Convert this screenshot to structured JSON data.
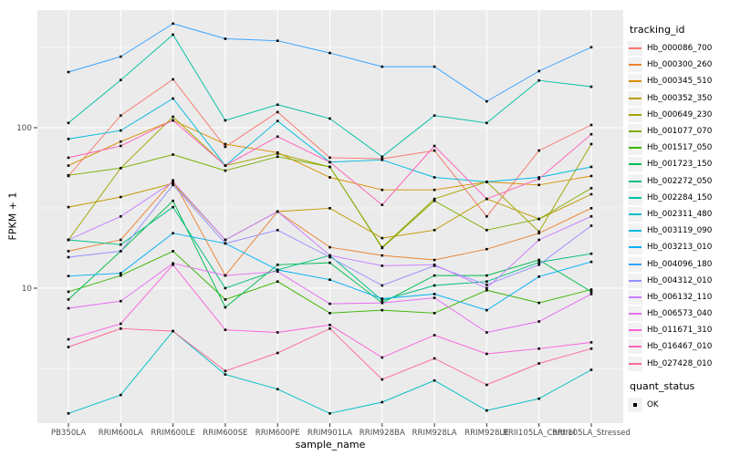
{
  "chart_data": {
    "type": "line",
    "title": "",
    "xlabel": "sample_name",
    "ylabel": "FPKM + 1",
    "y_scale": "log10",
    "y_ticks": [
      10,
      100
    ],
    "y_minor_ticks": [
      3.162,
      31.62,
      316.2
    ],
    "ylim": [
      1.45,
      545
    ],
    "grid": "on",
    "legend_position": "right",
    "legend_title": "tracking_id",
    "quant_legend": {
      "title": "quant_status",
      "items": [
        "OK"
      ]
    },
    "x_categories": [
      "PB350LA",
      "RRIM600LA",
      "RRIM600LE",
      "RRIM600SE",
      "RRIM600PE",
      "RRIM901LA",
      "RRIM928BA",
      "RRIM928LA",
      "RRIM928LE",
      "RRII105LA_Control",
      "RRII105LA_Stressed"
    ],
    "series": [
      {
        "name": "Hb_000086_700",
        "color": "#F8766D",
        "values": [
          50,
          119,
          200,
          76,
          125,
          65,
          64,
          72,
          28,
          72,
          104
        ]
      },
      {
        "name": "Hb_000300_260",
        "color": "#EA8331",
        "values": [
          17,
          20,
          47,
          12,
          30,
          18,
          16,
          15,
          17.5,
          22,
          31.5
        ]
      },
      {
        "name": "Hb_000345_510",
        "color": "#D89000",
        "values": [
          58,
          82,
          111,
          79,
          70,
          49,
          41,
          41,
          46,
          44,
          50
        ]
      },
      {
        "name": "Hb_000352_350",
        "color": "#C09B00",
        "values": [
          32,
          37,
          45,
          20,
          30,
          31.5,
          20.5,
          23,
          36,
          27,
          38.5
        ]
      },
      {
        "name": "Hb_000649_230",
        "color": "#A3A500",
        "values": [
          20,
          56,
          117,
          58,
          69,
          57,
          18,
          36,
          46,
          22.5,
          79
        ]
      },
      {
        "name": "Hb_001077_070",
        "color": "#7CAE00",
        "values": [
          50.5,
          56,
          68,
          54,
          66,
          57,
          17.8,
          35,
          23,
          27,
          42
        ]
      },
      {
        "name": "Hb_001517_050",
        "color": "#39B600",
        "values": [
          9.5,
          12,
          17,
          8.5,
          11,
          7,
          7.3,
          7,
          9.7,
          8.1,
          9.8
        ]
      },
      {
        "name": "Hb_001723_150",
        "color": "#00BB4E",
        "values": [
          8.5,
          17,
          35,
          7.6,
          14,
          14.4,
          8.1,
          12,
          12,
          15,
          9.5
        ]
      },
      {
        "name": "Hb_002272_050",
        "color": "#00BF7D",
        "values": [
          20,
          18.7,
          32,
          10,
          13,
          16,
          8.4,
          10.4,
          11,
          14.5,
          16.4
        ]
      },
      {
        "name": "Hb_002284_150",
        "color": "#00C1A3",
        "values": [
          107,
          198,
          380,
          111,
          139,
          114,
          66,
          119,
          107,
          197,
          180
        ]
      },
      {
        "name": "Hb_002311_480",
        "color": "#00BFC4",
        "values": [
          1.66,
          2.16,
          5.4,
          2.9,
          2.35,
          1.66,
          1.95,
          2.66,
          1.73,
          2.05,
          3.1
        ]
      },
      {
        "name": "Hb_003119_090",
        "color": "#00BAE0",
        "values": [
          85,
          96,
          152,
          58,
          110,
          61,
          63,
          49,
          46,
          49,
          57
        ]
      },
      {
        "name": "Hb_003213_010",
        "color": "#00B0F6",
        "values": [
          11.9,
          12.4,
          22,
          19,
          13,
          11.3,
          8.6,
          9.2,
          7.3,
          11.8,
          14.6
        ]
      },
      {
        "name": "Hb_004096_180",
        "color": "#35A2FF",
        "values": [
          222,
          277,
          445,
          358,
          348,
          292,
          240,
          240,
          146,
          225,
          317
        ]
      },
      {
        "name": "Hb_004312_010",
        "color": "#9590FF",
        "values": [
          15.6,
          17,
          44,
          19,
          23,
          15.6,
          10.4,
          13.8,
          10.5,
          14,
          24.5
        ]
      },
      {
        "name": "Hb_006132_110",
        "color": "#C77CFF",
        "values": [
          20,
          28,
          46,
          20,
          30,
          16,
          13.8,
          14,
          10,
          20,
          28
        ]
      },
      {
        "name": "Hb_006573_040",
        "color": "#E76BF3",
        "values": [
          7.5,
          8.3,
          14.3,
          12,
          12.7,
          8,
          8.1,
          8.7,
          5.3,
          6.2,
          9.2
        ]
      },
      {
        "name": "Hb_011671_310",
        "color": "#FA62DB",
        "values": [
          4.8,
          6,
          14,
          5.5,
          5.3,
          5.9,
          3.7,
          5.1,
          3.9,
          4.2,
          4.6
        ]
      },
      {
        "name": "Hb_016467_010",
        "color": "#FF62BC",
        "values": [
          65,
          77,
          111,
          58,
          88,
          61,
          33,
          77,
          36,
          48,
          91
        ]
      },
      {
        "name": "Hb_027428_010",
        "color": "#FF6A98",
        "values": [
          4.3,
          5.6,
          5.4,
          3.05,
          3.95,
          5.6,
          2.7,
          3.65,
          2.5,
          3.4,
          4.2
        ]
      }
    ]
  },
  "colors": {
    "panel_bg": "#EBEBEB",
    "grid": "#FFFFFF",
    "axis_text": "#4D4D4D",
    "tick_mark": "#333333",
    "point": "#000000"
  }
}
